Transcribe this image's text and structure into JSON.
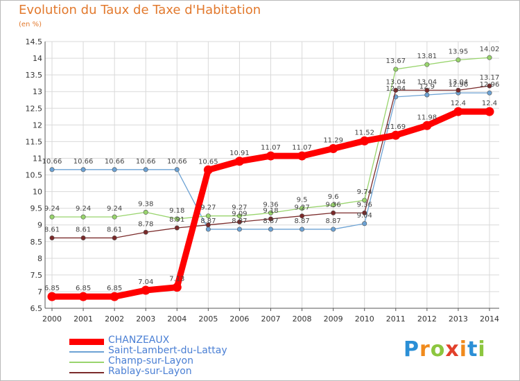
{
  "title": "Evolution du Taux de Taxe d'Habitation",
  "unit": "(en %)",
  "brand": "Proxiti",
  "colors": {
    "title": "#e2792d",
    "grid": "#d9d9d9",
    "axis": "#555555"
  },
  "chart_data": {
    "type": "line",
    "title": "Evolution du Taux de Taxe d'Habitation",
    "ylabel": "(en %)",
    "xlabel": "",
    "x": [
      "2000",
      "2001",
      "2002",
      "2003",
      "2004",
      "2005",
      "2006",
      "2007",
      "2008",
      "2009",
      "2010",
      "2011",
      "2012",
      "2013",
      "2014"
    ],
    "ylim": [
      6.5,
      14.5
    ],
    "yticks": [
      "6.5",
      "7",
      "7.5",
      "8",
      "8.5",
      "9",
      "9.5",
      "10",
      "10.5",
      "11",
      "11.5",
      "12",
      "12.5",
      "13",
      "13.5",
      "14",
      "14.5"
    ],
    "grid": true,
    "legend_position": "bottom-left",
    "series": [
      {
        "name": "CHANZEAUX",
        "color": "#ff0000",
        "values": [
          6.85,
          6.85,
          6.85,
          7.04,
          7.13,
          10.65,
          10.91,
          11.07,
          11.07,
          11.29,
          11.52,
          11.69,
          11.98,
          12.4,
          12.4
        ],
        "labels": [
          "6.85",
          "6.85",
          "6.85",
          "7.04",
          "7.13",
          "10.65",
          "10.91",
          "11.07",
          "11.07",
          "11.29",
          "11.52",
          "11.69",
          "11.98",
          "12.4",
          "12.4"
        ]
      },
      {
        "name": "Saint-Lambert-du-Lattay",
        "color": "#6ca2d4",
        "values": [
          10.66,
          10.66,
          10.66,
          10.66,
          10.66,
          8.87,
          8.87,
          8.87,
          8.87,
          8.87,
          9.04,
          12.84,
          12.9,
          12.96,
          12.96
        ],
        "labels": [
          "10.66",
          "10.66",
          "10.66",
          "10.66",
          "10.66",
          "8.87",
          "8.87",
          "8.87",
          "8.87",
          "8.87",
          "9.04",
          "12.84",
          "12.9",
          "12.96",
          "12.96"
        ]
      },
      {
        "name": "Champ-sur-Layon",
        "color": "#98d46c",
        "values": [
          9.24,
          9.24,
          9.24,
          9.38,
          9.18,
          9.27,
          9.27,
          9.36,
          9.5,
          9.6,
          9.74,
          13.67,
          13.81,
          13.95,
          14.02
        ],
        "labels": [
          "9.24",
          "9.24",
          "9.24",
          "9.38",
          "9.18",
          "9.27",
          "9.27",
          "9.36",
          "9.5",
          "9.6",
          "9.74",
          "13.67",
          "13.81",
          "13.95",
          "14.02"
        ]
      },
      {
        "name": "Rablay-sur-Layon",
        "color": "#7a2a2a",
        "values": [
          8.61,
          8.61,
          8.61,
          8.78,
          8.91,
          9.0,
          9.09,
          9.18,
          9.27,
          9.36,
          9.36,
          13.04,
          13.04,
          13.04,
          13.17
        ],
        "labels": [
          "8.61",
          "8.61",
          "8.61",
          "8.78",
          "8.91",
          "",
          "9.09",
          "9.18",
          "9.27",
          "9.36",
          "9.36",
          "13.04",
          "13.04",
          "13.04",
          "13.17"
        ]
      }
    ]
  }
}
